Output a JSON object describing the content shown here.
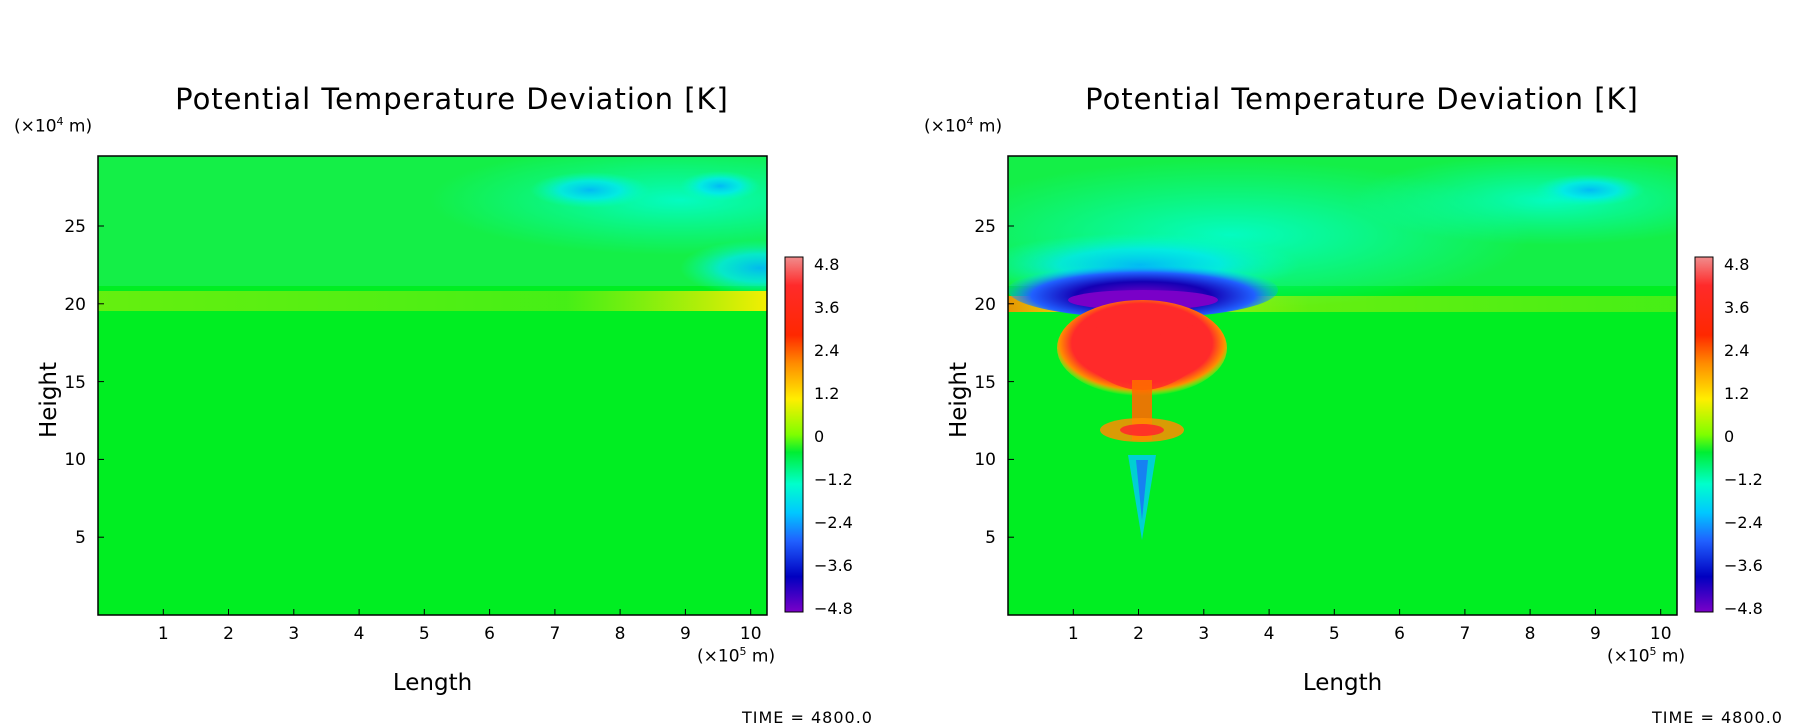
{
  "chart_data": [
    {
      "type": "heatmap",
      "title": "Potential Temperature Deviation [K]",
      "xlabel": "Length",
      "ylabel": "Height",
      "x_unit_prefix": "(×10",
      "x_unit_exp": "5",
      "x_unit_suffix": " m)",
      "y_unit_prefix": "(×10",
      "y_unit_exp": "4",
      "y_unit_suffix": " m)",
      "xlim": [
        0,
        10.25
      ],
      "ylim": [
        0,
        29.5
      ],
      "x_ticks": [
        "1",
        "2",
        "3",
        "4",
        "5",
        "6",
        "7",
        "8",
        "9",
        "10"
      ],
      "y_ticks": [
        "5",
        "10",
        "15",
        "20",
        "25"
      ],
      "colorbar_ticks": [
        "4.8",
        "3.6",
        "2.4",
        "1.2",
        "0",
        "−1.2",
        "−2.4",
        "−3.6",
        "−4.8"
      ],
      "colorbar_range": [
        -4.8,
        4.8
      ],
      "time_text": "TIME = 4800.0",
      "features": [
        {
          "kind": "stable-layer",
          "height": 20.3,
          "value": 0.8
        },
        {
          "kind": "cool-region",
          "x": 9.3,
          "height": 22,
          "value": -2.0
        },
        {
          "kind": "cool-region",
          "x": 8.5,
          "height": 27.5,
          "value": -1.2
        }
      ]
    },
    {
      "type": "heatmap",
      "title": "Potential Temperature Deviation [K]",
      "xlabel": "Length",
      "ylabel": "Height",
      "x_unit_prefix": "(×10",
      "x_unit_exp": "5",
      "x_unit_suffix": " m)",
      "y_unit_prefix": "(×10",
      "y_unit_exp": "4",
      "y_unit_suffix": " m)",
      "xlim": [
        0,
        10.25
      ],
      "ylim": [
        0,
        29.5
      ],
      "x_ticks": [
        "1",
        "2",
        "3",
        "4",
        "5",
        "6",
        "7",
        "8",
        "9",
        "10"
      ],
      "y_ticks": [
        "5",
        "10",
        "15",
        "20",
        "25"
      ],
      "colorbar_ticks": [
        "4.8",
        "3.6",
        "2.4",
        "1.2",
        "0",
        "−1.2",
        "−2.4",
        "−3.6",
        "−4.8"
      ],
      "colorbar_range": [
        -4.8,
        4.8
      ],
      "time_text": "TIME = 4800.0",
      "features": [
        {
          "kind": "cold-cap",
          "x": 2.0,
          "height": 20.8,
          "value": -4.8
        },
        {
          "kind": "warm-plume",
          "x": 2.1,
          "height": 16.5,
          "value": 4.2
        },
        {
          "kind": "warm-stem",
          "x": 2.05,
          "height": 12,
          "value": 3.0
        },
        {
          "kind": "cool-tail",
          "x": 1.95,
          "height": 8,
          "value": -2.2
        }
      ]
    }
  ]
}
